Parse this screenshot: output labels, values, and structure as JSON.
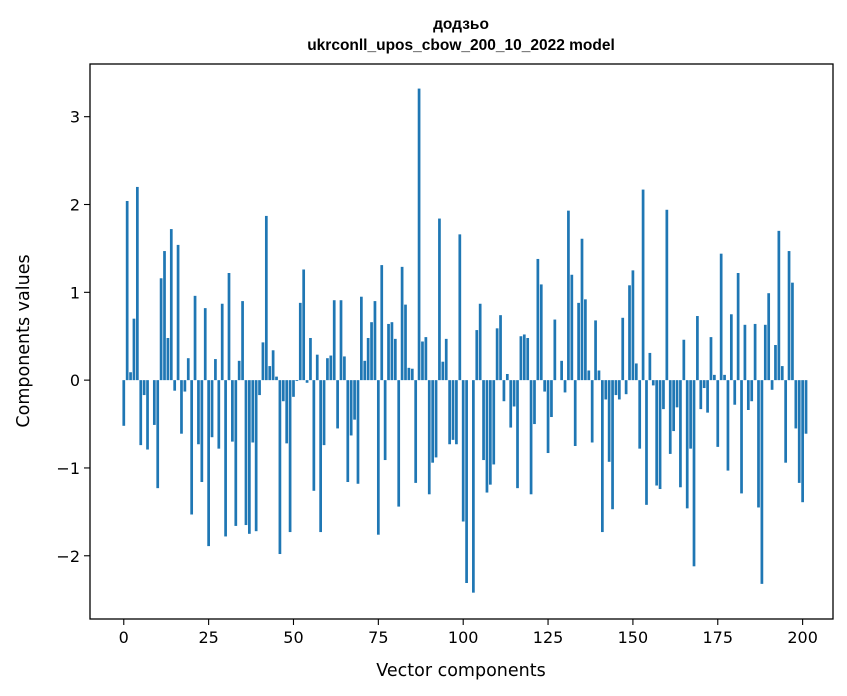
{
  "chart_data": {
    "type": "bar",
    "title": "додзьо",
    "subtitle": "ukrconll_upos_cbow_200_10_2022 model",
    "xlabel": "Vector components",
    "ylabel": "Components values",
    "xlim": [
      -9.95,
      208.95
    ],
    "ylim": [
      -2.72,
      3.6
    ],
    "xticks": [
      0,
      25,
      50,
      75,
      100,
      125,
      150,
      175,
      200
    ],
    "yticks": [
      -2,
      -1,
      0,
      1,
      2,
      3
    ],
    "ytick_labels": [
      "−2",
      "−1",
      "0",
      "1",
      "2",
      "3"
    ],
    "grid": false,
    "bar_color": "#1f77b4",
    "values": [
      -0.52,
      2.04,
      0.09,
      0.7,
      2.2,
      -0.74,
      -0.17,
      -0.79,
      0.0,
      -0.51,
      -1.23,
      1.16,
      1.47,
      0.48,
      1.72,
      -0.12,
      1.54,
      -0.61,
      -0.13,
      0.25,
      -1.53,
      0.96,
      -0.73,
      -1.16,
      0.82,
      -1.89,
      -0.65,
      0.24,
      -0.78,
      0.87,
      -1.78,
      1.22,
      -0.7,
      -1.66,
      0.22,
      0.9,
      -1.65,
      -1.75,
      -0.71,
      -1.72,
      -0.17,
      0.43,
      1.87,
      0.16,
      0.34,
      0.04,
      -1.98,
      -0.24,
      -0.72,
      -1.73,
      -0.19,
      -0.01,
      0.88,
      1.26,
      -0.03,
      0.48,
      -1.26,
      0.29,
      -1.73,
      -0.74,
      0.25,
      0.28,
      0.91,
      -0.55,
      0.91,
      0.27,
      -1.16,
      -0.63,
      -0.45,
      -1.18,
      0.95,
      0.22,
      0.48,
      0.66,
      0.9,
      -1.76,
      1.31,
      -0.91,
      0.64,
      0.66,
      0.47,
      -1.44,
      1.29,
      0.86,
      0.14,
      0.13,
      -1.17,
      3.32,
      0.44,
      0.49,
      -1.3,
      -0.94,
      -0.88,
      1.84,
      0.21,
      0.47,
      -0.73,
      -0.68,
      -0.73,
      1.66,
      -1.61,
      -2.31,
      0.0,
      -2.42,
      0.57,
      0.87,
      -0.91,
      -1.28,
      -1.19,
      -0.96,
      0.59,
      0.74,
      -0.24,
      0.07,
      -0.54,
      -0.3,
      -1.23,
      0.5,
      0.52,
      0.48,
      -1.3,
      -0.5,
      1.38,
      1.09,
      -0.13,
      -0.83,
      -0.42,
      0.69,
      0.0,
      0.22,
      -0.14,
      1.93,
      1.2,
      -0.75,
      0.88,
      1.61,
      0.92,
      0.11,
      -0.71,
      0.68,
      0.11,
      -1.73,
      -0.22,
      -0.93,
      -1.47,
      -0.17,
      -0.22,
      0.71,
      -0.16,
      1.08,
      1.25,
      0.19,
      -0.78,
      2.17,
      -1.42,
      0.31,
      -0.06,
      -1.2,
      -1.24,
      -0.33,
      1.94,
      -0.84,
      -0.58,
      -0.31,
      -1.22,
      0.46,
      -1.46,
      -0.78,
      -2.12,
      0.73,
      -0.33,
      -0.09,
      -0.37,
      0.49,
      0.06,
      -0.76,
      1.44,
      0.06,
      -1.03,
      0.75,
      -0.28,
      1.22,
      -1.29,
      0.63,
      -0.34,
      -0.24,
      0.64,
      -1.45,
      -2.32,
      0.63,
      0.99,
      -0.11,
      0.4,
      1.7,
      0.16,
      -0.94,
      1.47,
      1.11,
      -0.55,
      -1.17,
      -1.39,
      -0.61
    ]
  }
}
